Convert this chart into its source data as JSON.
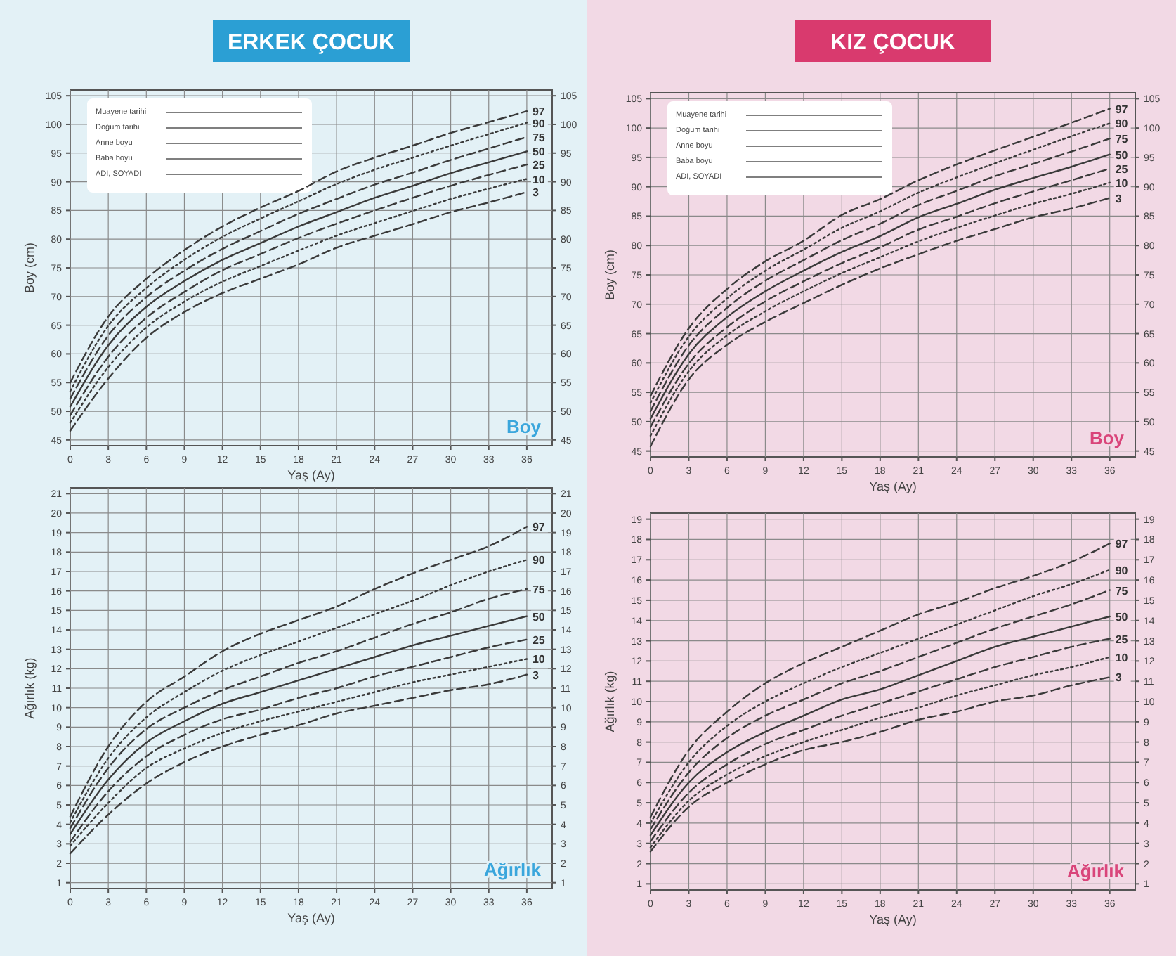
{
  "chart_data": [
    {
      "type": "line",
      "title": "ERKEK ÇOCUK",
      "subtitle": "Boy",
      "xlabel": "Yaş (Ay)",
      "ylabel": "Boy (cm)",
      "annotations": [
        "Muayene tarihi",
        "Doğum tarihi",
        "Anne boyu",
        "Baba boyu",
        "ADI, SOYADI"
      ],
      "x": [
        0,
        3,
        6,
        9,
        12,
        15,
        18,
        21,
        24,
        27,
        30,
        33,
        36
      ],
      "xlim": [
        0,
        38
      ],
      "xticks": [
        0,
        3,
        6,
        9,
        12,
        15,
        18,
        21,
        24,
        27,
        30,
        33,
        36
      ],
      "ylim": [
        44,
        106
      ],
      "yticks": [
        45,
        50,
        55,
        60,
        65,
        70,
        75,
        80,
        85,
        90,
        95,
        100,
        105
      ],
      "y2lim": [
        44,
        106
      ],
      "y2ticks": [
        45,
        50,
        55,
        60,
        65,
        70,
        75,
        80,
        85,
        90,
        95,
        100,
        105
      ],
      "grid": true,
      "series": [
        {
          "name": "97",
          "color": "#3a3a3a",
          "line_style": "dashed",
          "values": [
            55,
            66.5,
            73.1,
            78.1,
            82.2,
            85.5,
            88.4,
            91.8,
            94.2,
            96.3,
            98.5,
            100.4,
            102.3
          ]
        },
        {
          "name": "90",
          "color": "#3a3a3a",
          "line_style": "dotted",
          "values": [
            53.5,
            64.9,
            71.5,
            76.4,
            80.4,
            83.6,
            86.6,
            89.6,
            92.1,
            94.2,
            96.3,
            98.3,
            100.3
          ]
        },
        {
          "name": "75",
          "color": "#3a3a3a",
          "line_style": "dashed",
          "values": [
            52.2,
            63.2,
            69.9,
            74.5,
            78.3,
            81.4,
            84.4,
            87,
            89.5,
            91.6,
            93.8,
            95.8,
            97.8
          ]
        },
        {
          "name": "50",
          "color": "#3a3a3a",
          "line_style": "solid",
          "values": [
            50.8,
            61.5,
            68.2,
            72.7,
            76.4,
            79.3,
            82.2,
            84.7,
            87.2,
            89.3,
            91.5,
            93.4,
            95.3
          ]
        },
        {
          "name": "25",
          "color": "#3a3a3a",
          "line_style": "dashed",
          "values": [
            49.3,
            59.5,
            66.3,
            70.8,
            74.6,
            77.4,
            80.2,
            82.7,
            85,
            87.2,
            89.3,
            91.2,
            93
          ]
        },
        {
          "name": "10",
          "color": "#3a3a3a",
          "line_style": "dotted",
          "values": [
            48,
            57.7,
            64.6,
            69.1,
            72.6,
            75.3,
            78,
            80.6,
            82.8,
            84.9,
            87,
            88.8,
            90.5
          ]
        },
        {
          "name": "3",
          "color": "#3a3a3a",
          "line_style": "dashed",
          "values": [
            46.6,
            55.7,
            62.8,
            67.3,
            70.6,
            73.1,
            75.6,
            78.5,
            80.6,
            82.6,
            84.7,
            86.4,
            88.2
          ]
        }
      ]
    },
    {
      "type": "line",
      "title": "KIZ ÇOCUK",
      "subtitle": "Boy",
      "xlabel": "Yaş (Ay)",
      "ylabel": "Boy (cm)",
      "annotations": [
        "Muayene tarihi",
        "Doğum tarihi",
        "Anne boyu",
        "Baba boyu",
        "ADI, SOYADI"
      ],
      "x": [
        0,
        3,
        6,
        9,
        12,
        15,
        18,
        21,
        24,
        27,
        30,
        33,
        36
      ],
      "xlim": [
        0,
        38
      ],
      "xticks": [
        0,
        3,
        6,
        9,
        12,
        15,
        18,
        21,
        24,
        27,
        30,
        33,
        36
      ],
      "ylim": [
        44,
        106
      ],
      "yticks": [
        45,
        50,
        55,
        60,
        65,
        70,
        75,
        80,
        85,
        90,
        95,
        100,
        105
      ],
      "y2lim": [
        44,
        106
      ],
      "y2ticks": [
        45,
        50,
        55,
        60,
        65,
        70,
        75,
        80,
        85,
        90,
        95,
        100,
        105
      ],
      "grid": true,
      "series": [
        {
          "name": "97",
          "color": "#3a3a3a",
          "line_style": "dashed",
          "values": [
            54.4,
            65.9,
            72.6,
            77.3,
            80.8,
            85.2,
            87.9,
            91.1,
            93.8,
            96.2,
            98.5,
            100.9,
            103.3
          ]
        },
        {
          "name": "90",
          "color": "#3a3a3a",
          "line_style": "dotted",
          "values": [
            53.2,
            64.5,
            71,
            75.7,
            79.3,
            83,
            85.8,
            89,
            91.6,
            94,
            96.3,
            98.6,
            100.8
          ]
        },
        {
          "name": "75",
          "color": "#3a3a3a",
          "line_style": "dashed",
          "values": [
            51.8,
            63,
            69.4,
            74,
            77.5,
            80.9,
            83.7,
            86.9,
            89.3,
            91.8,
            93.9,
            96,
            98.2
          ]
        },
        {
          "name": "50",
          "color": "#3a3a3a",
          "line_style": "solid",
          "values": [
            50.5,
            61.5,
            67.8,
            72.2,
            75.7,
            78.9,
            81.6,
            84.8,
            87.1,
            89.5,
            91.5,
            93.4,
            95.5
          ]
        },
        {
          "name": "25",
          "color": "#3a3a3a",
          "line_style": "dashed",
          "values": [
            49.1,
            59.9,
            66.1,
            70.5,
            73.9,
            77,
            79.7,
            82.7,
            84.9,
            87.2,
            89.2,
            91.1,
            93.1
          ]
        },
        {
          "name": "10",
          "color": "#3a3a3a",
          "line_style": "dotted",
          "values": [
            47.6,
            58.6,
            64.7,
            68.8,
            72.2,
            75.3,
            78,
            80.7,
            83,
            85.1,
            87.1,
            88.8,
            90.7
          ]
        },
        {
          "name": "3",
          "color": "#3a3a3a",
          "line_style": "dashed",
          "values": [
            45.8,
            57.2,
            63.1,
            67,
            70.2,
            73.3,
            76.1,
            78.5,
            80.8,
            82.8,
            84.8,
            86.3,
            88.1
          ]
        }
      ]
    },
    {
      "type": "line",
      "subtitle": "Ağırlık",
      "xlabel": "Yaş (Ay)",
      "ylabel": "Ağırlık (kg)",
      "x": [
        0,
        3,
        6,
        9,
        12,
        15,
        18,
        21,
        24,
        27,
        30,
        33,
        36
      ],
      "xlim": [
        0,
        38
      ],
      "xticks": [
        0,
        3,
        6,
        9,
        12,
        15,
        18,
        21,
        24,
        27,
        30,
        33,
        36
      ],
      "ylim": [
        0.7,
        21.3
      ],
      "yticks": [
        1,
        2,
        3,
        4,
        5,
        6,
        7,
        8,
        9,
        10,
        11,
        12,
        13,
        14,
        15,
        16,
        17,
        18,
        19,
        20,
        21
      ],
      "y2lim": [
        0.7,
        21.3
      ],
      "y2ticks": [
        1,
        2,
        3,
        4,
        5,
        6,
        7,
        8,
        9,
        10,
        11,
        12,
        13,
        14,
        15,
        16,
        17,
        18,
        19,
        20,
        21
      ],
      "grid": true,
      "series": [
        {
          "name": "97",
          "color": "#3a3a3a",
          "line_style": "dashed",
          "values": [
            4.4,
            8,
            10.3,
            11.6,
            12.9,
            13.8,
            14.5,
            15.2,
            16.1,
            16.9,
            17.6,
            18.3,
            19.3
          ]
        },
        {
          "name": "90",
          "color": "#3a3a3a",
          "line_style": "dotted",
          "values": [
            4.1,
            7.4,
            9.5,
            10.8,
            11.9,
            12.7,
            13.4,
            14.1,
            14.8,
            15.5,
            16.3,
            17,
            17.6
          ]
        },
        {
          "name": "75",
          "color": "#3a3a3a",
          "line_style": "dashed",
          "values": [
            3.8,
            6.9,
            8.9,
            10,
            10.9,
            11.6,
            12.3,
            12.9,
            13.6,
            14.3,
            14.9,
            15.6,
            16.1
          ]
        },
        {
          "name": "50",
          "color": "#3a3a3a",
          "line_style": "solid",
          "values": [
            3.5,
            6.3,
            8.2,
            9.3,
            10.2,
            10.8,
            11.4,
            12,
            12.6,
            13.2,
            13.7,
            14.2,
            14.7
          ]
        },
        {
          "name": "25",
          "color": "#3a3a3a",
          "line_style": "dashed",
          "values": [
            3.1,
            5.7,
            7.5,
            8.6,
            9.4,
            9.9,
            10.5,
            11,
            11.6,
            12.1,
            12.6,
            13.1,
            13.5
          ]
        },
        {
          "name": "10",
          "color": "#3a3a3a",
          "line_style": "dotted",
          "values": [
            2.9,
            5.1,
            6.9,
            7.9,
            8.7,
            9.3,
            9.8,
            10.3,
            10.8,
            11.3,
            11.7,
            12.1,
            12.5
          ]
        },
        {
          "name": "3",
          "color": "#3a3a3a",
          "line_style": "dashed",
          "values": [
            2.5,
            4.5,
            6.1,
            7.2,
            8,
            8.6,
            9.1,
            9.7,
            10.1,
            10.5,
            10.9,
            11.2,
            11.7
          ]
        }
      ]
    },
    {
      "type": "line",
      "subtitle": "Ağırlık",
      "xlabel": "Yaş (Ay)",
      "ylabel": "Ağırlık (kg)",
      "x": [
        0,
        3,
        6,
        9,
        12,
        15,
        18,
        21,
        24,
        27,
        30,
        33,
        36
      ],
      "xlim": [
        0,
        38
      ],
      "xticks": [
        0,
        3,
        6,
        9,
        12,
        15,
        18,
        21,
        24,
        27,
        30,
        33,
        36
      ],
      "ylim": [
        0.7,
        19.3
      ],
      "yticks": [
        1,
        2,
        3,
        4,
        5,
        6,
        7,
        8,
        9,
        10,
        11,
        12,
        13,
        14,
        15,
        16,
        17,
        18,
        19
      ],
      "y2lim": [
        0.7,
        19.3
      ],
      "y2ticks": [
        1,
        2,
        3,
        4,
        5,
        6,
        7,
        8,
        9,
        10,
        11,
        12,
        13,
        14,
        15,
        16,
        17,
        18,
        19
      ],
      "grid": true,
      "series": [
        {
          "name": "97",
          "color": "#3a3a3a",
          "line_style": "dashed",
          "values": [
            4.3,
            7.6,
            9.5,
            10.9,
            11.9,
            12.7,
            13.5,
            14.3,
            14.9,
            15.6,
            16.2,
            16.9,
            17.8
          ]
        },
        {
          "name": "90",
          "color": "#3a3a3a",
          "line_style": "dotted",
          "values": [
            4,
            7,
            8.8,
            10,
            10.9,
            11.7,
            12.4,
            13.1,
            13.8,
            14.5,
            15.2,
            15.8,
            16.5
          ]
        },
        {
          "name": "75",
          "color": "#3a3a3a",
          "line_style": "dashed",
          "values": [
            3.7,
            6.5,
            8.2,
            9.3,
            10.1,
            10.9,
            11.5,
            12.2,
            12.9,
            13.6,
            14.2,
            14.8,
            15.5
          ]
        },
        {
          "name": "50",
          "color": "#3a3a3a",
          "line_style": "solid",
          "values": [
            3.4,
            6,
            7.5,
            8.5,
            9.3,
            10.1,
            10.6,
            11.3,
            12,
            12.7,
            13.2,
            13.7,
            14.2
          ]
        },
        {
          "name": "25",
          "color": "#3a3a3a",
          "line_style": "dashed",
          "values": [
            3.1,
            5.5,
            6.9,
            7.9,
            8.6,
            9.3,
            9.9,
            10.5,
            11.1,
            11.7,
            12.2,
            12.7,
            13.1
          ]
        },
        {
          "name": "10",
          "color": "#3a3a3a",
          "line_style": "dotted",
          "values": [
            2.8,
            5.1,
            6.4,
            7.3,
            8,
            8.6,
            9.2,
            9.7,
            10.3,
            10.8,
            11.3,
            11.7,
            12.2
          ]
        },
        {
          "name": "3",
          "color": "#3a3a3a",
          "line_style": "dashed",
          "values": [
            2.6,
            4.8,
            6,
            6.9,
            7.6,
            8,
            8.5,
            9.1,
            9.5,
            10,
            10.3,
            10.8,
            11.2
          ]
        }
      ]
    }
  ]
}
